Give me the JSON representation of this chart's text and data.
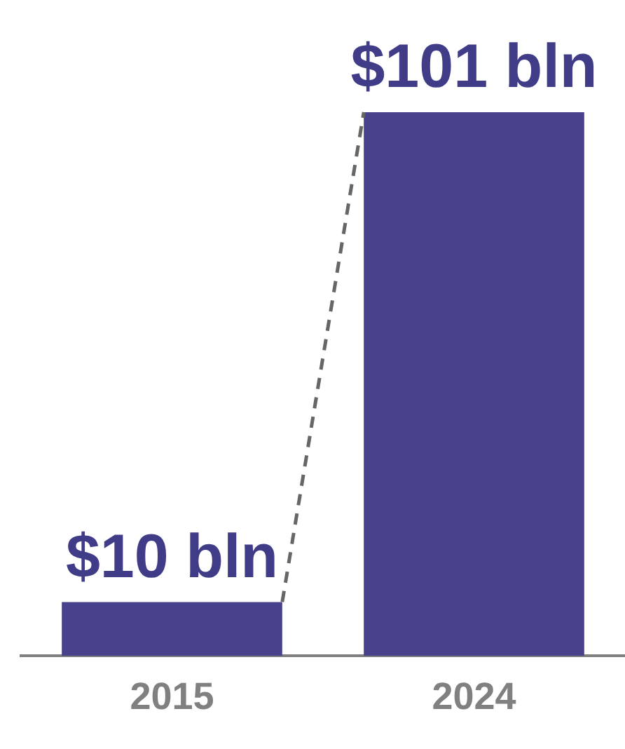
{
  "chart_data": {
    "type": "bar",
    "categories": [
      "2015",
      "2024"
    ],
    "values": [
      10,
      101
    ],
    "color": "#48428c",
    "value_labels": [
      "$10 bln",
      "$101 bln"
    ],
    "grid": false,
    "legend": false,
    "tick_labels": "x"
  }
}
